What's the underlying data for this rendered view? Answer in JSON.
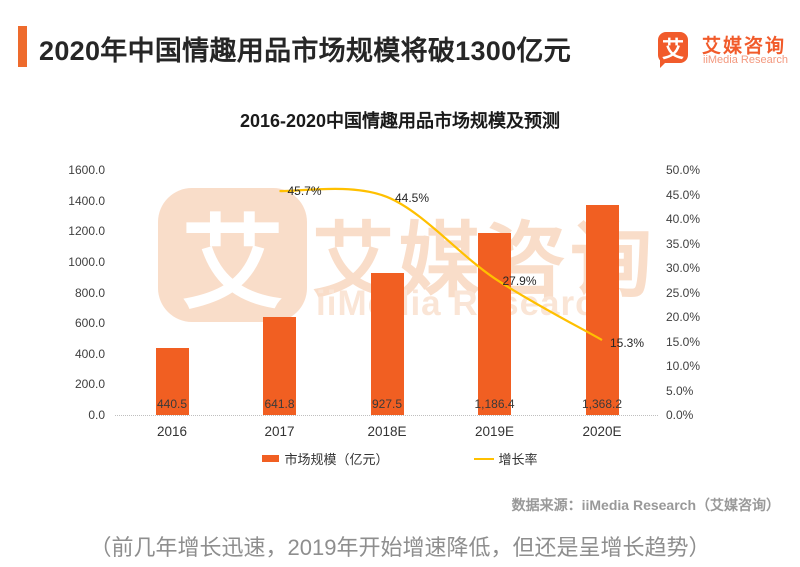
{
  "header": {
    "title": "2020年中国情趣用品市场规模将破1300亿元",
    "logo": {
      "icon_char": "艾",
      "name_cn": "艾媒咨询",
      "name_en": "iiMedia Research"
    }
  },
  "watermark": {
    "icon_char": "艾",
    "name_cn": "艾媒咨询",
    "name_en": "iiMedia Research"
  },
  "chart_data": {
    "type": "bar",
    "title": "2016-2020中国情趣用品市场规模及预测",
    "categories": [
      "2016",
      "2017",
      "2018E",
      "2019E",
      "2020E"
    ],
    "series": [
      {
        "name": "市场规模（亿元）",
        "type": "bar",
        "axis": "left",
        "values": [
          440.5,
          641.8,
          927.5,
          1186.4,
          1368.2
        ],
        "labels": [
          "440.5",
          "641.8",
          "927.5",
          "1,186.4",
          "1,368.2"
        ],
        "color": "#f15f22"
      },
      {
        "name": "增长率",
        "type": "line",
        "axis": "right",
        "values": [
          null,
          45.7,
          44.5,
          27.9,
          15.3
        ],
        "labels": [
          null,
          "45.7%",
          "44.5%",
          "27.9%",
          "15.3%"
        ],
        "color": "#ffc000"
      }
    ],
    "left_axis": {
      "min": 0,
      "max": 1600,
      "ticks": [
        "1600.0",
        "1400.0",
        "1200.0",
        "1000.0",
        "800.0",
        "600.0",
        "400.0",
        "200.0",
        "0.0"
      ]
    },
    "right_axis": {
      "min": 0,
      "max": 50,
      "ticks": [
        "50.0%",
        "45.0%",
        "40.0%",
        "35.0%",
        "30.0%",
        "25.0%",
        "20.0%",
        "15.0%",
        "10.0%",
        "5.0%",
        "0.0%"
      ]
    },
    "legend": [
      "市场规模（亿元）",
      "增长率"
    ],
    "grid": false,
    "legend_position": "bottom"
  },
  "source": "数据来源：iiMedia Research（艾媒咨询）",
  "caption": "（前几年增长迅速，2019年开始增速降低，但还是呈增长趋势）"
}
